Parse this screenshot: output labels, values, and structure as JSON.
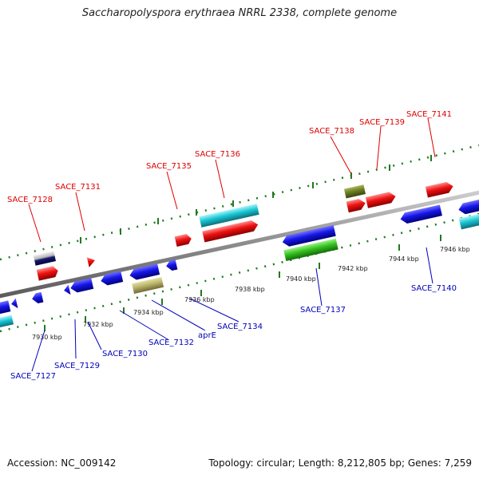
{
  "title": "Saccharopolyspora erythraea NRRL 2338, complete genome",
  "footer": {
    "accession": "Accession: NC_009142",
    "stats": "Topology: circular; Length: 8,212,805 bp; Genes: 7,259"
  },
  "colors": {
    "forward_label": "#dd0000",
    "reverse_label": "#0000bb",
    "tick": "#1f7a1f",
    "backbone": "#888888"
  },
  "ticks": [
    "7930 kbp",
    "7932 kbp",
    "7934 kbp",
    "7936 kbp",
    "7938 kbp",
    "7940 kbp",
    "7942 kbp",
    "7944 kbp",
    "7946 kbp"
  ],
  "labels": {
    "forward": [
      "SACE_7128",
      "SACE_7131",
      "SACE_7135",
      "SACE_7136",
      "SACE_7138",
      "SACE_7139",
      "SACE_7141"
    ],
    "reverse": [
      "SACE_7127",
      "SACE_7129",
      "SACE_7130",
      "SACE_7132",
      "aprE",
      "SACE_7134",
      "SACE_7137",
      "SACE_7140"
    ]
  }
}
